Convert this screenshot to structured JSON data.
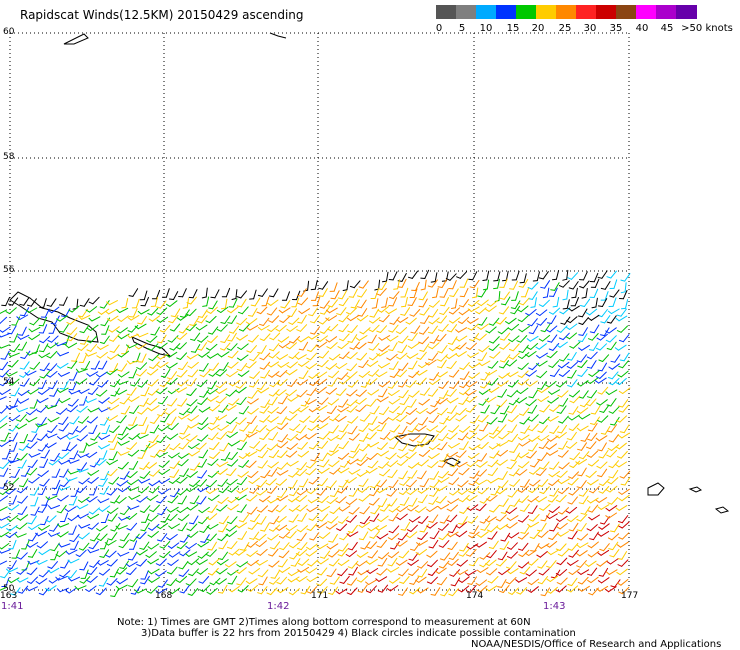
{
  "title": "Rapidscat Winds(12.5KM) 20150429 ascending",
  "colorbar": {
    "swatches": [
      "#555555",
      "#7f7f7f",
      "#00aaff",
      "#0033ff",
      "#00c800",
      "#ffcc00",
      "#ff8800",
      "#ff2222",
      "#cc0000",
      "#8b4513",
      "#ff00ff",
      "#aa00cc",
      "#6600aa"
    ],
    "labels": [
      "0",
      "5",
      "10",
      "15",
      "20",
      "25",
      "30",
      "35",
      "40",
      "45",
      ">50 knots"
    ]
  },
  "map": {
    "latitudes": [
      "60",
      "58",
      "56",
      "54",
      "52",
      "50"
    ],
    "longitudes": [
      "163",
      "168",
      "171",
      "174",
      "177"
    ],
    "times": [
      "1:41",
      "1:42",
      "1:43"
    ],
    "colors": {
      "calm": "#000000",
      "light": "#00ccff",
      "moderate_blue": "#0033ff",
      "moderate_green": "#00c000",
      "fresh": "#ffcc00",
      "strong": "#ff8800",
      "gale": "#cc0000"
    }
  },
  "notes": {
    "line1": "Note: 1) Times are GMT 2)Times along bottom correspond to measurement at 60N",
    "line2": "3)Data buffer is 22 hrs from 20150429 4) Black circles indicate possible contamination",
    "line3": "NOAA/NESDIS/Office of Research and Applications"
  }
}
